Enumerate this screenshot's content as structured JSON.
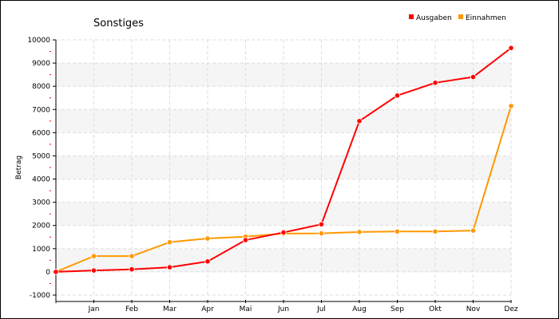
{
  "chart_data": {
    "type": "line",
    "title": "Sonstiges",
    "xlabel": "",
    "ylabel": "Betrag",
    "categories": [
      "",
      "Jan",
      "Feb",
      "Mar",
      "Apr",
      "Mai",
      "Jun",
      "Jul",
      "Aug",
      "Sep",
      "Okt",
      "Nov",
      "Dez"
    ],
    "ylim": [
      -1000,
      10000
    ],
    "yticks": [
      -1000,
      0,
      1000,
      2000,
      3000,
      4000,
      5000,
      6000,
      7000,
      8000,
      9000,
      10000
    ],
    "grid": true,
    "legend_position": "top-right",
    "series": [
      {
        "name": "Ausgaben",
        "color": "#ff0000",
        "values": [
          0,
          60,
          110,
          200,
          450,
          1370,
          1700,
          2050,
          6500,
          7600,
          8150,
          8400,
          9650
        ]
      },
      {
        "name": "Einnahmen",
        "color": "#ff9800",
        "values": [
          0,
          680,
          680,
          1280,
          1440,
          1520,
          1650,
          1660,
          1720,
          1740,
          1740,
          1780,
          7150
        ]
      }
    ]
  }
}
